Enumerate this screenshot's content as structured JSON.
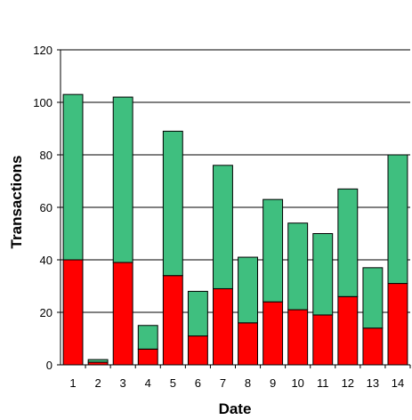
{
  "chart_data": {
    "type": "bar",
    "stacked": true,
    "title": "",
    "xlabel": "Date",
    "ylabel": "Transactions",
    "ylim": [
      0,
      120
    ],
    "y_ticks": [
      0,
      20,
      40,
      60,
      80,
      100,
      120
    ],
    "grid": "horizontal",
    "categories": [
      "1",
      "2",
      "3",
      "4",
      "5",
      "6",
      "7",
      "8",
      "9",
      "10",
      "11",
      "12",
      "13",
      "14"
    ],
    "series": [
      {
        "color": "#ff0000",
        "values": [
          40,
          1,
          39,
          6,
          34,
          11,
          29,
          16,
          24,
          21,
          19,
          26,
          14,
          31
        ]
      },
      {
        "color": "#3fbf7f",
        "values": [
          63,
          1,
          63,
          9,
          55,
          17,
          47,
          25,
          39,
          33,
          31,
          41,
          23,
          49
        ]
      }
    ]
  }
}
